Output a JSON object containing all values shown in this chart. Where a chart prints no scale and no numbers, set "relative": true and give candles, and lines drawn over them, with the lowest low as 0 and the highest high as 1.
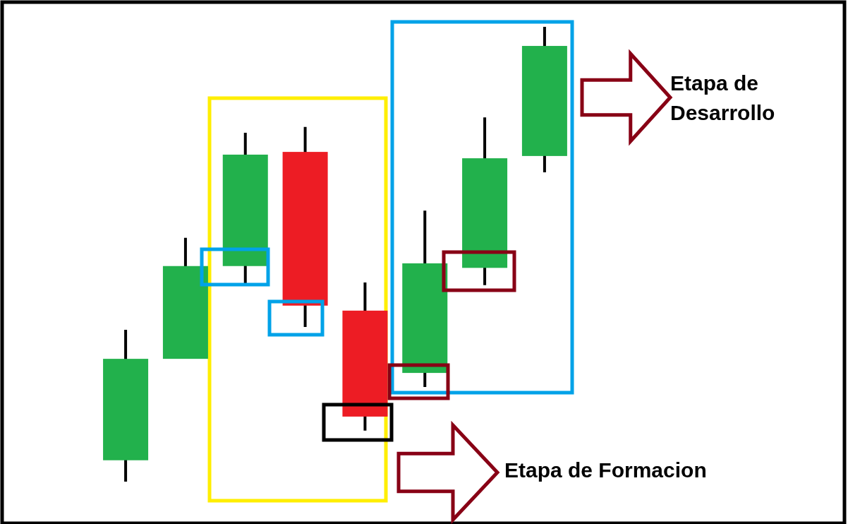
{
  "chart_data": {
    "type": "candlestick",
    "relative": true,
    "categories": [
      null,
      null,
      null,
      null,
      null,
      null,
      null,
      null
    ],
    "ohlc": [
      [
        0.047,
        0.334,
        0,
        0.27
      ],
      [
        0.27,
        0.536,
        0.27,
        0.474
      ],
      [
        0.474,
        0.767,
        0.436,
        0.719
      ],
      [
        0.725,
        0.78,
        0.34,
        0.387
      ],
      [
        0.376,
        0.438,
        0.112,
        0.143
      ],
      [
        0.239,
        0.596,
        0.208,
        0.48
      ],
      [
        0.47,
        0.801,
        0.432,
        0.711
      ],
      [
        0.716,
        1,
        0.68,
        0.958
      ]
    ],
    "colors": [
      "#22b14c",
      "#22b14c",
      "#22b14c",
      "#ed1c24",
      "#ed1c24",
      "#22b14c",
      "#22b14c",
      "#22b14c"
    ],
    "annotations": [
      "Etapa de Desarrollo",
      "Etapa de Formacion"
    ]
  }
}
